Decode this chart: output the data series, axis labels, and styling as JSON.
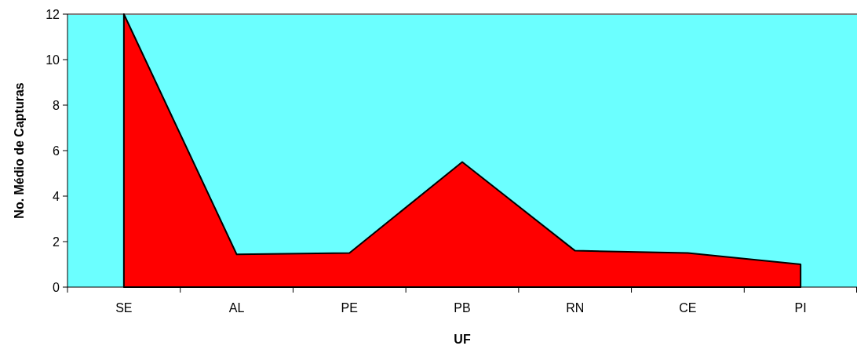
{
  "chart_data": {
    "type": "area",
    "xlabel": "UF",
    "ylabel": "No. Médio de Capturas",
    "categories": [
      "SE",
      "AL",
      "PE",
      "PB",
      "RN",
      "CE",
      "PI"
    ],
    "values": [
      12,
      1.44,
      1.5,
      5.5,
      1.6,
      1.5,
      1.0
    ],
    "color": "#ff0000",
    "ylim": [
      0,
      12
    ],
    "yticks": [
      0,
      2,
      4,
      6,
      8,
      10,
      12
    ],
    "grid": false
  }
}
